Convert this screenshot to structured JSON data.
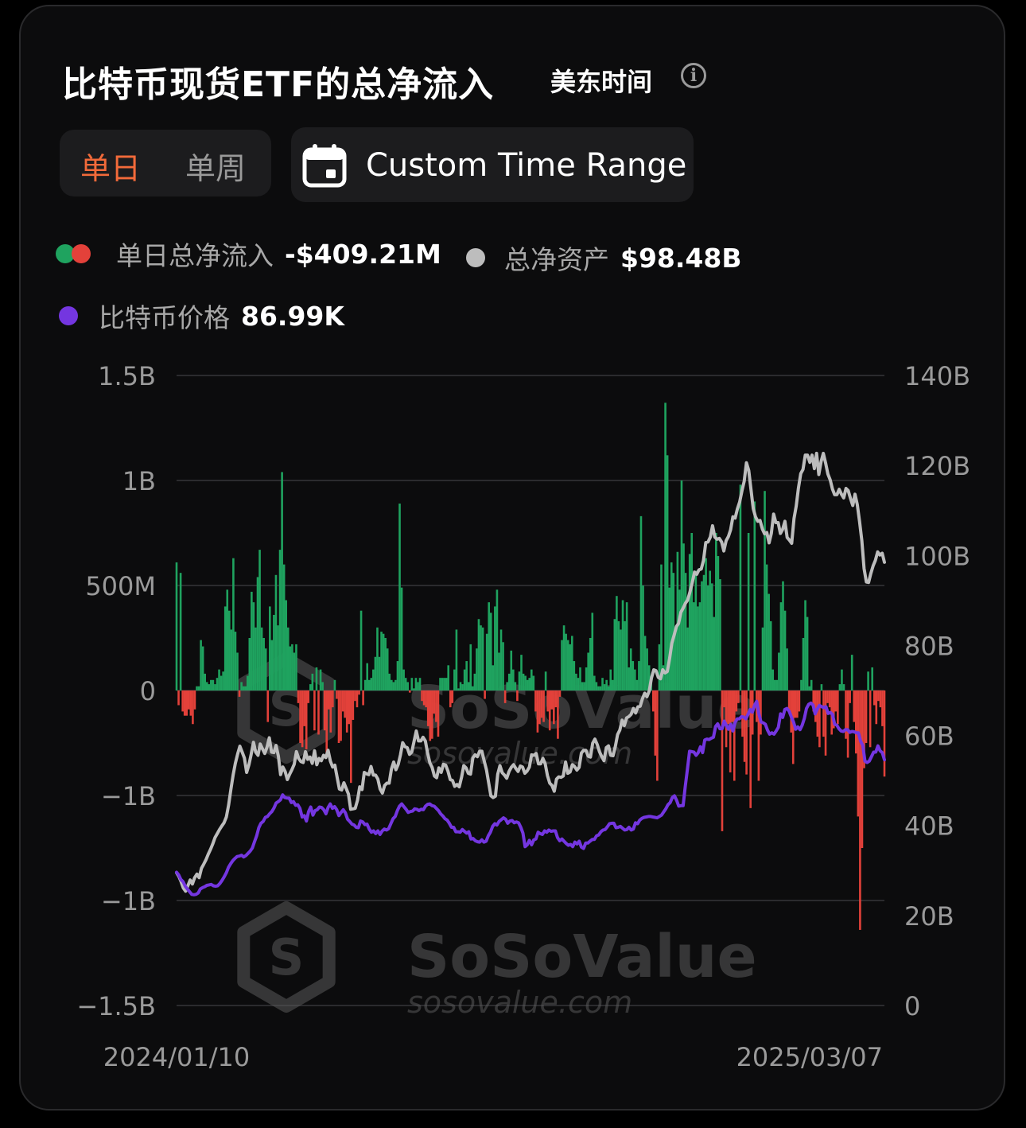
{
  "header": {
    "title": "比特币现货ETF的总净流入",
    "timezone": "美东时间",
    "info_icon": "info-icon"
  },
  "tabs": {
    "daily": "单日",
    "weekly": "单周",
    "active": "daily"
  },
  "range_button": {
    "label": "Custom Time Range",
    "icon": "calendar-icon"
  },
  "legend": {
    "net_inflow_label": "单日总净流入",
    "net_inflow_value": "-$409.21M",
    "assets_label": "总净资产",
    "assets_value": "$98.48B",
    "price_label": "比特币价格",
    "price_value": "86.99K"
  },
  "watermark": {
    "brand": "SoSoValue",
    "url": "sosovalue.com"
  },
  "colors": {
    "inflow": "#1fa35f",
    "outflow": "#e3413a",
    "assets": "#bdbdbd",
    "price": "#7436e0",
    "active_tab": "#f26a3a"
  },
  "chart_data": {
    "type": "bar",
    "left_axis": {
      "ticks": [
        "1.5B",
        "1B",
        "500M",
        "0",
        "−1B",
        "−1B",
        "−1.5B"
      ],
      "ylim": [
        -1.5,
        1.5
      ],
      "unit": "B"
    },
    "right_axis": {
      "ticks": [
        "140B",
        "120B",
        "100B",
        "80B",
        "60B",
        "40B",
        "20B",
        "0"
      ],
      "ylim": [
        0,
        140
      ]
    },
    "x_start": "2024/01/10",
    "x_end": "2025/03/07",
    "series": [
      {
        "name": "单日总净流入",
        "type": "bar",
        "values": [
          0.61,
          -0.07,
          0.56,
          -0.1,
          -0.12,
          -0.12,
          -0.09,
          -0.12,
          -0.16,
          -0.09,
          0.02,
          0.02,
          0.24,
          0.21,
          0.08,
          0.04,
          0.03,
          0.05,
          0.05,
          0.03,
          0.06,
          0.1,
          0.07,
          0.09,
          0.4,
          0.48,
          0.38,
          0.29,
          0.63,
          0.28,
          0.18,
          -0.03,
          0.04,
          0.02,
          0.02,
          0.07,
          0.25,
          0.47,
          0.42,
          0.3,
          0.54,
          0.67,
          0.3,
          0.25,
          0.2,
          -0.15,
          0.4,
          0.24,
          0.36,
          0.55,
          0.31,
          0.67,
          1.04,
          0.6,
          0.43,
          0.3,
          0.21,
          0.22,
          0.18,
          0.22,
          -0.06,
          -0.25,
          -0.27,
          -0.17,
          -0.28,
          -0.06,
          0.03,
          0.08,
          -0.19,
          0.11,
          -0.21,
          0.1,
          0.04,
          -0.19,
          -0.31,
          -0.09,
          -0.2,
          -0.08,
          0.05,
          -0.04,
          -0.25,
          -0.24,
          -0.1,
          -0.13,
          -0.2,
          -0.16,
          -0.44,
          -0.14,
          -0.05,
          -0.08,
          -0.02,
          0.38,
          -0.07,
          0.05,
          0.13,
          0.05,
          0.06,
          0.1,
          0.16,
          0.3,
          0.16,
          0.28,
          0.27,
          0.25,
          0.2,
          0.08,
          0.05,
          0.04,
          0.05,
          0.14,
          0.89,
          0.49,
          0.1,
          0.06,
          0.04,
          -0.01,
          0.06,
          0.01,
          0.06,
          0.04,
          0.06,
          -0.05,
          -0.07,
          -0.08,
          -0.17,
          -0.24,
          -0.23,
          -0.11,
          -0.15,
          -0.22,
          0.06,
          0.06,
          0.06,
          0.06,
          0.12,
          -0.08,
          -0.06,
          0.1,
          0.29,
          0.01,
          0.04,
          0.03,
          0.1,
          0.14,
          0.04,
          0.22,
          0.02,
          0.08,
          0.2,
          0.34,
          0.31,
          0.3,
          -0.04,
          0.27,
          0.42,
          0.37,
          0.12,
          0.4,
          0.48,
          0.18,
          0.29,
          0.23,
          -0.06,
          0.04,
          0.08,
          0.19,
          0.1,
          0.04,
          -0.05,
          0.09,
          0.17,
          0.08,
          0.07,
          0.05,
          0.06,
          0.1,
          0.07,
          -0.1,
          -0.2,
          -0.16,
          -0.13,
          -0.15,
          0.09,
          -0.1,
          -0.19,
          -0.09,
          -0.16,
          -0.08,
          -0.23,
          -0.03,
          0.24,
          0.31,
          0.27,
          0.24,
          0.22,
          0.26,
          0.14,
          0.08,
          0.06,
          0.11,
          0.04,
          0.04,
          0.11,
          0.18,
          0.25,
          0.37,
          0.07,
          0.04,
          0.02,
          0.02,
          0.06,
          0.03,
          0.05,
          0.02,
          0.1,
          0.05,
          0.34,
          0.45,
          0.33,
          0.29,
          0.43,
          0.33,
          0.42,
          0.11,
          0.2,
          0.14,
          0.1,
          0.05,
          0.14,
          0.83,
          0.5,
          0.26,
          0.2,
          0.12,
          0.05,
          -0.1,
          -0.31,
          -0.43,
          0.22,
          0.6,
          0.12,
          1.37,
          1.12,
          0.49,
          0.61,
          0.56,
          0.28,
          0.66,
          0.48,
          1.0,
          0.7,
          0.56,
          0.3,
          0.65,
          0.75,
          0.42,
          0.57,
          0.4,
          0.42,
          0.52,
          0.55,
          0.63,
          0.5,
          0.57,
          0.51,
          0.35,
          0.75,
          0.64,
          0.53,
          -0.67,
          -0.08,
          -0.27,
          -0.16,
          -0.39,
          -0.15,
          -0.43,
          -0.1,
          -0.06,
          0.98,
          -0.22,
          -0.34,
          -0.4,
          0.75,
          -0.56,
          -0.21,
          0.9,
          -0.15,
          -0.43,
          -0.21,
          0.3,
          0.95,
          0.6,
          0.46,
          0.33,
          0.1,
          0.05,
          0.05,
          0.18,
          0.42,
          0.52,
          0.38,
          0.2,
          -0.1,
          -0.2,
          -0.35,
          -0.13,
          -0.13,
          -0.1,
          0.05,
          0.25,
          0.43,
          0.35,
          0.02,
          0.05,
          -0.1,
          -0.15,
          -0.22,
          -0.27,
          0.03,
          -0.22,
          -0.31,
          -0.06,
          -0.08,
          -0.21,
          -0.18,
          -0.1,
          -0.16,
          0.03,
          0.1,
          0.03,
          -0.23,
          -0.32,
          -0.06,
          0.17,
          -0.15,
          -0.3,
          -0.6,
          -1.14,
          -0.75,
          -0.37,
          -0.25,
          0.09,
          -0.27,
          0.11,
          -0.07,
          -0.16,
          -0.05,
          -0.08,
          -0.17,
          -0.41
        ]
      },
      {
        "name": "总净资产",
        "type": "line",
        "axis": "right",
        "values": [
          29.5,
          28.7,
          27.5,
          26.1,
          25.4,
          26.6,
          27.9,
          27.0,
          28.4,
          29.2,
          28.4,
          30.5,
          31.4,
          32.4,
          33.6,
          34.7,
          35.9,
          37.3,
          38.2,
          39.1,
          39.9,
          40.6,
          41.9,
          44.5,
          47.9,
          51.2,
          53.8,
          55.9,
          57.6,
          56.3,
          55.0,
          51.8,
          53.5,
          55.8,
          58.5,
          56.3,
          55.6,
          58.1,
          57.0,
          56.0,
          57.4,
          59.5,
          56.3,
          56.2,
          57.8,
          55.4,
          51.3,
          53.0,
          52.0,
          50.2,
          51.4,
          52.4,
          53.6,
          56.4,
          54.9,
          54.2,
          54.0,
          56.4,
          54.7,
          55.2,
          53.8,
          56.6,
          53.5,
          54.9,
          54.4,
          55.6,
          55.1,
          56.7,
          54.3,
          53.0,
          53.4,
          50.7,
          48.1,
          47.9,
          49.5,
          48.2,
          47.0,
          43.6,
          43.7,
          43.8,
          45.6,
          48.6,
          48.0,
          51.8,
          51.5,
          51.3,
          53.1,
          51.2,
          51.2,
          50.3,
          48.1,
          47.2,
          48.9,
          49.4,
          49.4,
          52.5,
          54.1,
          52.4,
          53.6,
          55.7,
          58.4,
          57.5,
          57.3,
          55.8,
          56.3,
          58.7,
          61.0,
          58.8,
          58.8,
          59.6,
          58.8,
          56.1,
          53.9,
          52.9,
          51.0,
          50.6,
          52.8,
          51.8,
          53.6,
          53.4,
          52.1,
          50.2,
          50.0,
          48.7,
          49.1,
          48.6,
          50.7,
          53.3,
          52.8,
          51.6,
          51.4,
          55.0,
          55.7,
          55.3,
          56.5,
          56.5,
          54.4,
          52.4,
          49.5,
          46.6,
          46.2,
          46.5,
          51.4,
          53.3,
          51.7,
          51.2,
          50.5,
          52.0,
          52.9,
          53.5,
          52.7,
          52.0,
          53.2,
          53.0,
          51.6,
          52.1,
          53.0,
          55.7,
          55.6,
          56.0,
          53.7,
          53.7,
          54.9,
          53.7,
          51.1,
          49.4,
          48.9,
          47.6,
          50.3,
          50.8,
          50.7,
          51.0,
          54.1,
          51.6,
          51.9,
          53.5,
          53.1,
          52.3,
          52.9,
          56.1,
          56.7,
          56.7,
          55.4,
          55.2,
          58.3,
          59.2,
          58.0,
          56.4,
          55.3,
          54.4,
          57.3,
          57.7,
          55.6,
          55.5,
          57.5,
          60.2,
          61.2,
          63.4,
          62.2,
          63.9,
          64.2,
          64.7,
          66.0,
          65.0,
          66.4,
          66.5,
          68.2,
          69.4,
          68.6,
          69.9,
          72.8,
          74.6,
          74.4,
          72.9,
          72.6,
          74.6,
          73.9,
          74.2,
          77.1,
          80.5,
          82.3,
          84.2,
          84.9,
          87.4,
          88.3,
          89.4,
          90.1,
          91.9,
          93.9,
          96.3,
          95.8,
          96.8,
          97.0,
          98.9,
          102.9,
          103.0,
          104.1,
          106.6,
          104.1,
          103.6,
          103.8,
          103.0,
          101.0,
          103.3,
          104.2,
          105.7,
          108.6,
          108.3,
          110.4,
          111.9,
          114.4,
          116.5,
          120.6,
          118.9,
          114.7,
          110.4,
          108.6,
          107.6,
          107.8,
          105.9,
          104.8,
          105.1,
          102.8,
          104.9,
          109.2,
          107.3,
          107.3,
          104.9,
          105.8,
          107.6,
          104.0,
          103.4,
          102.7,
          108.2,
          111.0,
          115.0,
          118.2,
          119.1,
          122.3,
          122.3,
          120.7,
          122.3,
          119.3,
          122.7,
          118.0,
          120.9,
          122.7,
          120.5,
          118.1,
          116.8,
          114.8,
          113.5,
          113.5,
          114.7,
          113.6,
          112.8,
          114.9,
          114.4,
          112.7,
          111.1,
          113.6,
          111.3,
          107.6,
          103.3,
          97.1,
          94.1,
          94.0,
          96.0,
          97.7,
          98.9,
          100.8,
          100.1,
          100.5,
          98.5
        ]
      },
      {
        "name": "比特币价格",
        "type": "line",
        "axis": "right",
        "values": [
          29.6,
          29.0,
          28.0,
          27.5,
          26.5,
          25.9,
          25.3,
          24.7,
          24.6,
          24.7,
          25.0,
          25.9,
          26.2,
          26.4,
          26.7,
          26.8,
          26.9,
          26.6,
          26.5,
          26.6,
          27.1,
          27.8,
          28.6,
          29.5,
          30.7,
          31.5,
          32.2,
          32.7,
          33.1,
          33.2,
          33.4,
          33.0,
          33.3,
          33.8,
          34.3,
          35.0,
          36.4,
          37.7,
          39.5,
          40.5,
          40.9,
          41.8,
          42.0,
          42.6,
          43.1,
          43.9,
          45.0,
          45.3,
          45.7,
          46.8,
          46.2,
          46.1,
          46.1,
          45.1,
          45.3,
          44.5,
          44.6,
          43.8,
          41.9,
          42.2,
          41.0,
          43.1,
          44.1,
          42.3,
          43.3,
          43.5,
          44.1,
          44.0,
          43.5,
          42.6,
          44.0,
          44.8,
          43.8,
          44.2,
          43.5,
          42.2,
          42.9,
          43.5,
          42.8,
          41.4,
          40.9,
          40.3,
          40.1,
          39.6,
          39.5,
          41.0,
          40.8,
          40.2,
          40.3,
          39.2,
          38.5,
          38.8,
          38.2,
          38.8,
          38.0,
          38.8,
          39.2,
          39.0,
          39.3,
          40.4,
          41.5,
          42.0,
          43.3,
          44.3,
          44.8,
          44.2,
          43.6,
          42.9,
          43.1,
          43.2,
          43.7,
          43.6,
          43.3,
          43.6,
          43.5,
          44.3,
          44.7,
          44.8,
          44.4,
          44.3,
          43.8,
          43.3,
          42.6,
          42.1,
          41.5,
          41.2,
          40.5,
          39.6,
          39.6,
          38.6,
          38.6,
          38.5,
          39.1,
          38.7,
          38.3,
          38.6,
          37.0,
          37.1,
          36.6,
          36.4,
          36.3,
          36.8,
          36.3,
          36.5,
          37.7,
          38.5,
          39.8,
          40.4,
          40.1,
          40.9,
          41.3,
          41.7,
          41.4,
          40.5,
          41.0,
          41.1,
          40.6,
          40.8,
          40.6,
          39.6,
          38.3,
          35.3,
          35.7,
          36.7,
          35.7,
          36.8,
          37.0,
          38.5,
          38.2,
          38.0,
          38.8,
          38.5,
          39.0,
          38.7,
          38.8,
          38.8,
          37.3,
          36.6,
          37.0,
          36.5,
          36.0,
          35.6,
          35.8,
          35.3,
          36.3,
          35.9,
          36.5,
          35.2,
          34.9,
          36.1,
          36.1,
          36.5,
          36.9,
          36.9,
          37.7,
          37.9,
          38.6,
          39.0,
          39.1,
          39.7,
          40.4,
          40.5,
          40.5,
          39.5,
          39.6,
          39.8,
          39.4,
          39.0,
          39.1,
          39.6,
          39.0,
          39.2,
          40.6,
          40.4,
          41.2,
          41.6,
          41.8,
          41.9,
          42.0,
          42.0,
          41.9,
          41.8,
          41.7,
          42.0,
          42.3,
          43.0,
          43.7,
          44.6,
          45.1,
          46.2,
          46.6,
          45.6,
          44.3,
          44.4,
          44.4,
          48.7,
          52.5,
          56.5,
          56.4,
          56.3,
          55.6,
          56.2,
          57.5,
          56.2,
          59.0,
          59.2,
          59.1,
          59.4,
          59.6,
          62.0,
          62.6,
          61.5,
          61.5,
          63.2,
          62.2,
          61.4,
          62.5,
          61.0,
          62.9,
          63.7,
          63.7,
          64.2,
          64.1,
          63.7,
          64.7,
          65.8,
          65.2,
          66.7,
          67.6,
          64.8,
          63.0,
          62.8,
          62.5,
          61.2,
          60.3,
          60.6,
          60.3,
          61.0,
          61.8,
          64.8,
          64.0,
          65.8,
          66.0,
          65.4,
          64.1,
          63.0,
          61.4,
          61.9,
          61.3,
          62.3,
          63.8,
          66.0,
          66.9,
          67.2,
          66.8,
          64.8,
          65.9,
          66.7,
          66.4,
          66.2,
          66.4,
          64.9,
          65.1,
          64.7,
          62.5,
          62.3,
          61.5,
          61.0,
          60.9,
          61.3,
          61.3,
          60.7,
          60.9,
          60.8,
          60.6,
          60.6,
          58.7,
          57.8,
          54.3,
          54.0,
          54.3,
          55.3,
          56.3,
          56.3,
          57.7,
          56.6,
          56.2,
          54.6
        ]
      }
    ]
  }
}
